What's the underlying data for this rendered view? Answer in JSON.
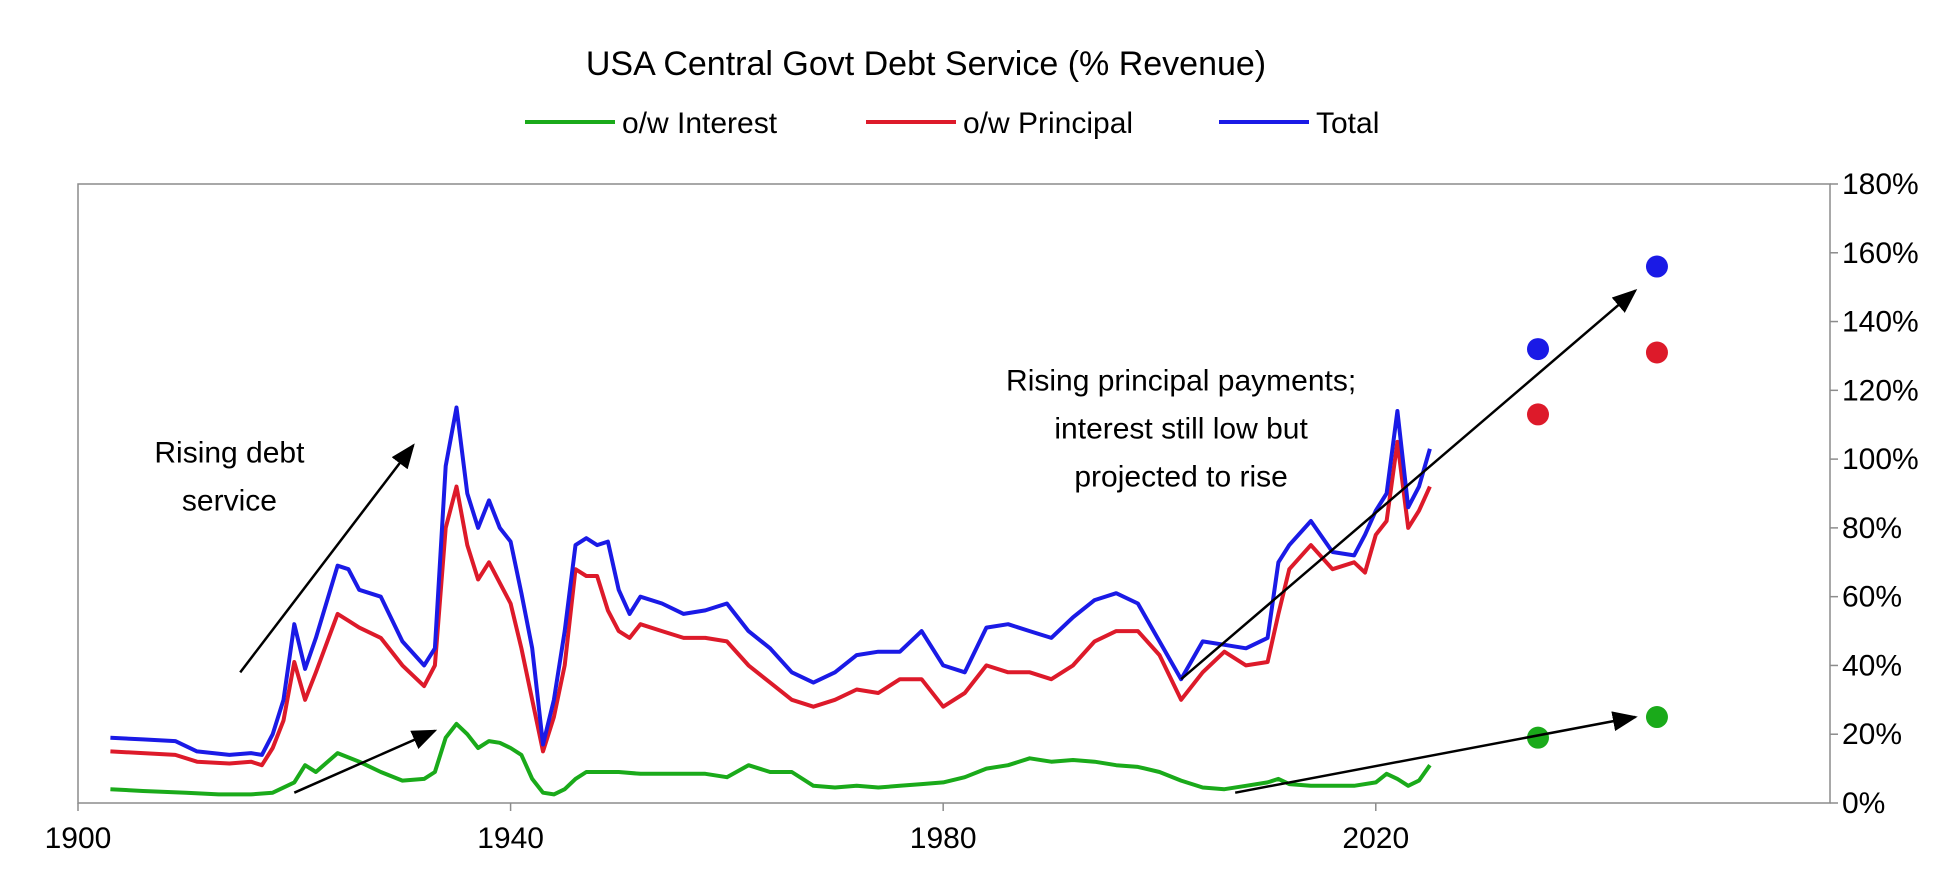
{
  "chart_data": {
    "type": "line",
    "title": "USA Central Govt Debt Service (% Revenue)",
    "xlabel": "",
    "ylabel": "",
    "xlim": [
      1900,
      2062
    ],
    "ylim": [
      0,
      180
    ],
    "y_axis_side": "right",
    "grid": false,
    "legend_position": "top-center",
    "x_ticks": [
      1900,
      1940,
      1980,
      2020
    ],
    "x_tick_labels": [
      "1900",
      "1940",
      "1980",
      "2020"
    ],
    "y_ticks": [
      0,
      20,
      40,
      60,
      80,
      100,
      120,
      140,
      160,
      180
    ],
    "y_tick_labels": [
      "0%",
      "20%",
      "40%",
      "60%",
      "80%",
      "100%",
      "120%",
      "140%",
      "160%",
      "180%"
    ],
    "series": [
      {
        "name": "o/w Interest",
        "color": "#1aaa1a",
        "x": [
          1903,
          1906,
          1910,
          1913,
          1916,
          1918,
          1920,
          1921,
          1922,
          1924,
          1926,
          1928,
          1930,
          1932,
          1933,
          1934,
          1935,
          1936,
          1937,
          1938,
          1939,
          1940,
          1941,
          1942,
          1943,
          1944,
          1945,
          1946,
          1947,
          1948,
          1950,
          1952,
          1954,
          1956,
          1958,
          1960,
          1962,
          1964,
          1966,
          1968,
          1970,
          1972,
          1974,
          1976,
          1978,
          1980,
          1982,
          1984,
          1986,
          1988,
          1990,
          1992,
          1994,
          1996,
          1998,
          2000,
          2002,
          2004,
          2006,
          2008,
          2010,
          2011,
          2012,
          2014,
          2016,
          2018,
          2020,
          2021,
          2022,
          2023,
          2024,
          2025
        ],
        "values": [
          4,
          3.5,
          3,
          2.5,
          2.5,
          3,
          6,
          11,
          9,
          14.5,
          12,
          9,
          6.5,
          7,
          9,
          19,
          23,
          20,
          16,
          18,
          17.5,
          16,
          14,
          7,
          3,
          2.5,
          4,
          7,
          9,
          9,
          9,
          8.5,
          8.5,
          8.5,
          8.5,
          7.5,
          11,
          9,
          9,
          5,
          4.5,
          5,
          4.5,
          5,
          5.5,
          6,
          7.5,
          10,
          11,
          13,
          12,
          12.5,
          12,
          11,
          10.5,
          9,
          6.5,
          4.5,
          4,
          5,
          6,
          7,
          5.5,
          5,
          5,
          5,
          6,
          8.5,
          7,
          5,
          6.5,
          11
        ]
      },
      {
        "name": "o/w Principal",
        "color": "#dd1a2a",
        "x": [
          1903,
          1906,
          1909,
          1911,
          1914,
          1916,
          1917,
          1918,
          1919,
          1920,
          1921,
          1922,
          1924,
          1925,
          1926,
          1928,
          1930,
          1932,
          1933,
          1934,
          1935,
          1936,
          1937,
          1938,
          1939,
          1940,
          1941,
          1942,
          1943,
          1944,
          1945,
          1946,
          1947,
          1948,
          1949,
          1950,
          1951,
          1952,
          1954,
          1956,
          1958,
          1960,
          1962,
          1964,
          1966,
          1968,
          1970,
          1972,
          1974,
          1976,
          1978,
          1980,
          1982,
          1984,
          1986,
          1988,
          1990,
          1992,
          1994,
          1996,
          1998,
          2000,
          2002,
          2004,
          2006,
          2008,
          2010,
          2011,
          2012,
          2014,
          2016,
          2018,
          2019,
          2020,
          2021,
          2022,
          2023,
          2024,
          2025
        ],
        "values": [
          15,
          14.5,
          14,
          12,
          11.5,
          12,
          11,
          16,
          24,
          41,
          30,
          38,
          55,
          53,
          51,
          48,
          40,
          34,
          40,
          80,
          92,
          75,
          65,
          70,
          64,
          58,
          45,
          30,
          15,
          25,
          40,
          68,
          66,
          66,
          56,
          50,
          48,
          52,
          50,
          48,
          48,
          47,
          40,
          35,
          30,
          28,
          30,
          33,
          32,
          36,
          36,
          28,
          32,
          40,
          38,
          38,
          36,
          40,
          47,
          50,
          50,
          43,
          30,
          38,
          44,
          40,
          41,
          55,
          68,
          75,
          68,
          70,
          67,
          78,
          82,
          105,
          80,
          85,
          92
        ]
      },
      {
        "name": "Total",
        "color": "#1a1ae6",
        "x": [
          1903,
          1906,
          1909,
          1911,
          1914,
          1916,
          1917,
          1918,
          1919,
          1920,
          1921,
          1922,
          1924,
          1925,
          1926,
          1928,
          1930,
          1932,
          1933,
          1934,
          1935,
          1936,
          1937,
          1938,
          1939,
          1940,
          1941,
          1942,
          1943,
          1944,
          1945,
          1946,
          1947,
          1948,
          1949,
          1950,
          1951,
          1952,
          1954,
          1956,
          1958,
          1960,
          1962,
          1964,
          1966,
          1968,
          1970,
          1972,
          1974,
          1976,
          1978,
          1980,
          1982,
          1984,
          1986,
          1988,
          1990,
          1992,
          1994,
          1996,
          1998,
          2000,
          2002,
          2004,
          2006,
          2008,
          2010,
          2011,
          2012,
          2014,
          2016,
          2018,
          2019,
          2020,
          2021,
          2022,
          2023,
          2024,
          2025
        ],
        "values": [
          19,
          18.5,
          18,
          15,
          14,
          14.5,
          14,
          20,
          30,
          52,
          39,
          48,
          69,
          68,
          62,
          60,
          47,
          40,
          45,
          98,
          115,
          90,
          80,
          88,
          80,
          76,
          61,
          45,
          17,
          30,
          50,
          75,
          77,
          75,
          76,
          62,
          55,
          60,
          58,
          55,
          56,
          58,
          50,
          45,
          38,
          35,
          38,
          43,
          44,
          44,
          50,
          40,
          38,
          51,
          52,
          50,
          48,
          54,
          59,
          61,
          58,
          47,
          36,
          47,
          46,
          45,
          48,
          70,
          75,
          82,
          73,
          72,
          78,
          85,
          90,
          114,
          86,
          92,
          103
        ]
      }
    ],
    "projections": [
      {
        "series": "Total",
        "x": 2035,
        "value": 132
      },
      {
        "series": "Total",
        "x": 2046,
        "value": 156
      },
      {
        "series": "o/w Principal",
        "x": 2035,
        "value": 113
      },
      {
        "series": "o/w Principal",
        "x": 2046,
        "value": 131
      },
      {
        "series": "o/w Interest",
        "x": 2035,
        "value": 19
      },
      {
        "series": "o/w Interest",
        "x": 2046,
        "value": 25
      }
    ],
    "arrows": [
      {
        "from": [
          1915,
          38
        ],
        "to": [
          1931,
          104
        ]
      },
      {
        "from": [
          1920,
          3
        ],
        "to": [
          1933,
          21
        ]
      },
      {
        "from": [
          2002,
          36
        ],
        "to": [
          2044,
          149
        ]
      },
      {
        "from": [
          2007,
          3
        ],
        "to": [
          2044,
          25
        ]
      }
    ],
    "annotations": [
      {
        "text_lines": [
          "Rising debt",
          "service"
        ],
        "x": 1914,
        "y": 99
      },
      {
        "text_lines": [
          "Rising principal payments;",
          "interest still low but",
          "projected to rise"
        ],
        "x": 2002,
        "y": 120
      }
    ]
  }
}
